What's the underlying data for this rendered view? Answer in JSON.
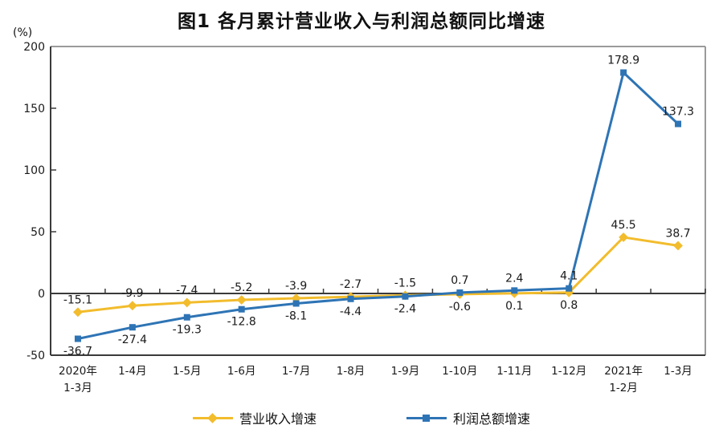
{
  "title": "图1  各月累计营业收入与利润总额同比增速",
  "y_unit_label": "(%)",
  "chart_data": {
    "type": "line",
    "categories": [
      "2020年|1-3月",
      "1-4月",
      "1-5月",
      "1-6月",
      "1-7月",
      "1-8月",
      "1-9月",
      "1-10月",
      "1-11月",
      "1-12月",
      "2021年|1-2月",
      "1-3月"
    ],
    "series": [
      {
        "name": "营业收入增速",
        "color": "#F2BC2C",
        "marker": "diamond",
        "values": [
          -15.1,
          -9.9,
          -7.4,
          -5.2,
          -3.9,
          -2.7,
          -1.5,
          -0.6,
          0.1,
          0.8,
          45.5,
          38.7
        ]
      },
      {
        "name": "利润总额增速",
        "color": "#2E74B5",
        "marker": "square",
        "values": [
          -36.7,
          -27.4,
          -19.3,
          -12.8,
          -8.1,
          -4.4,
          -2.4,
          0.7,
          2.4,
          4.1,
          178.9,
          137.3
        ]
      }
    ],
    "ylim": [
      -50,
      200
    ],
    "yticks": [
      200,
      150,
      100,
      50,
      0,
      -50
    ],
    "grid": false,
    "legend_position": "bottom",
    "axis_color": "#3a3a3a",
    "border_color": "#9a9a9a",
    "label_color": "#1a1a1a"
  }
}
